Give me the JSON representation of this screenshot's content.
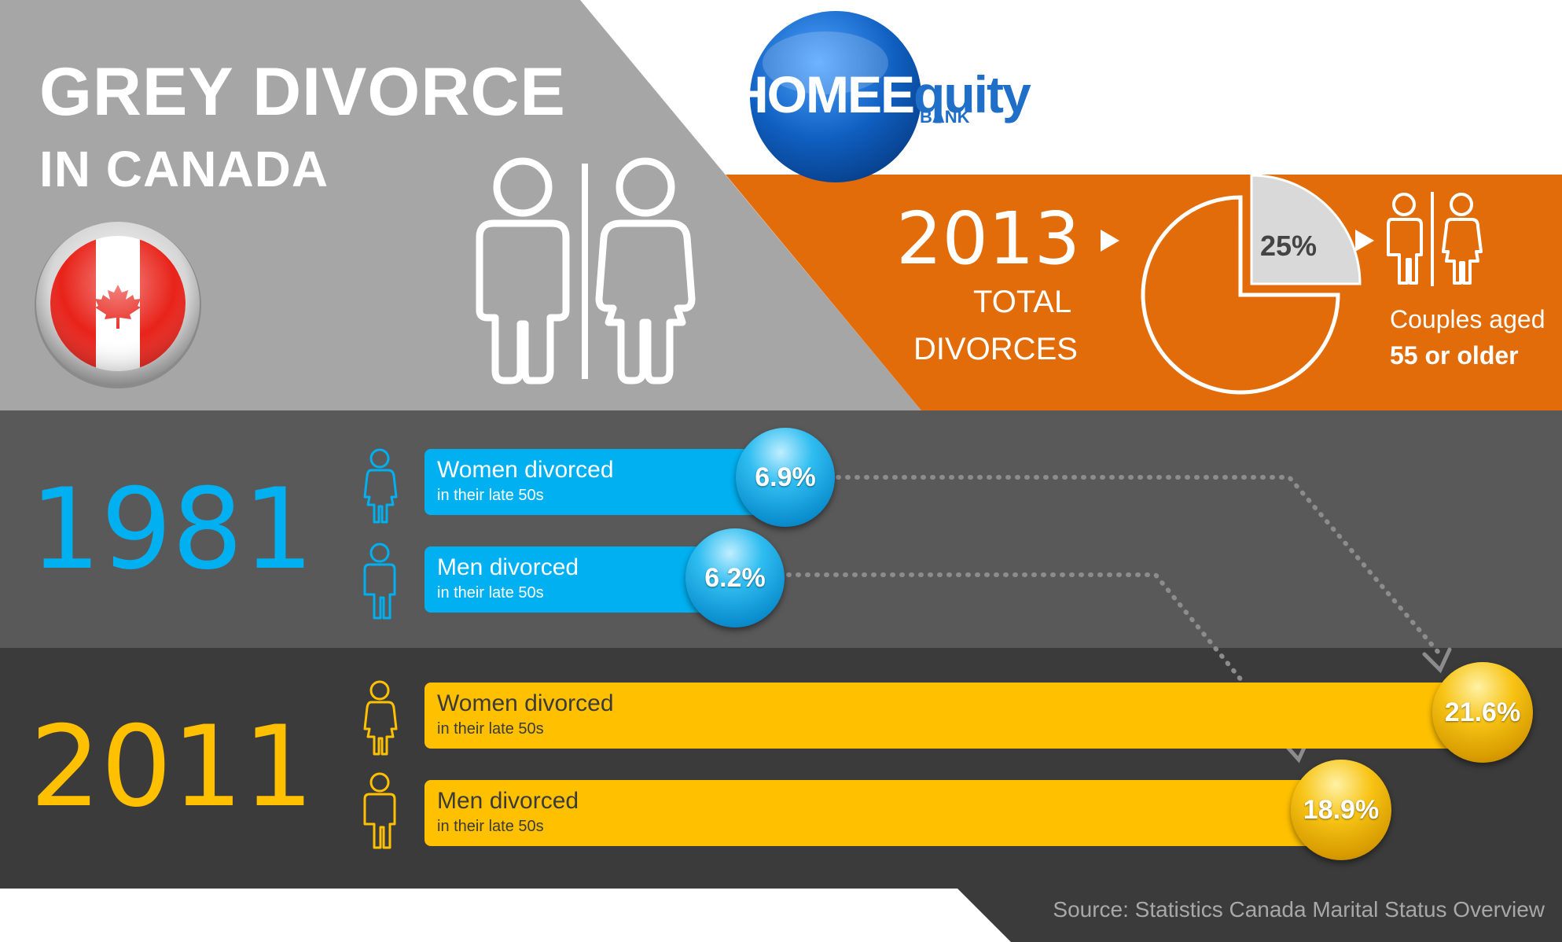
{
  "title": {
    "line1": "GREY DIVORCE",
    "line2": "IN CANADA"
  },
  "brand": {
    "home": "HOME",
    "equity": "quity",
    "bank": "BANK",
    "logo_letter": "E"
  },
  "stats_2013": {
    "number": "2013",
    "label_line1": "TOTAL",
    "label_line2": "DIVORCES",
    "pie_percent_label": "25%",
    "pie_percent_value": 25,
    "couples_line1": "Couples aged",
    "couples_line2": "55 or older"
  },
  "year_1981": {
    "year": "1981",
    "rows": [
      {
        "main": "Women divorced",
        "sub": "in their late 50s",
        "value_label": "6.9%",
        "value": 6.9
      },
      {
        "main": "Men divorced",
        "sub": "in their late 50s",
        "value_label": "6.2%",
        "value": 6.2
      }
    ]
  },
  "year_2011": {
    "year": "2011",
    "rows": [
      {
        "main": "Women divorced",
        "sub": "in their late 50s",
        "value_label": "21.6%",
        "value": 21.6
      },
      {
        "main": "Men divorced",
        "sub": "in their late 50s",
        "value_label": "18.9%",
        "value": 18.9
      }
    ]
  },
  "source": "Source: Statistics Canada Marital Status Overview",
  "colors": {
    "grey_top": "#a6a6a6",
    "orange": "#e36c0a",
    "dark_band": "#595959",
    "darker_band": "#3b3b3b",
    "blue": "#00b0f0",
    "gold": "#ffc000",
    "brand_blue": "#1f6fc8"
  },
  "icons": [
    "canada-flag-icon",
    "man-icon",
    "woman-icon",
    "triangle-right-icon",
    "pie-chart-icon",
    "couple-icon",
    "arrow-down-icon"
  ]
}
